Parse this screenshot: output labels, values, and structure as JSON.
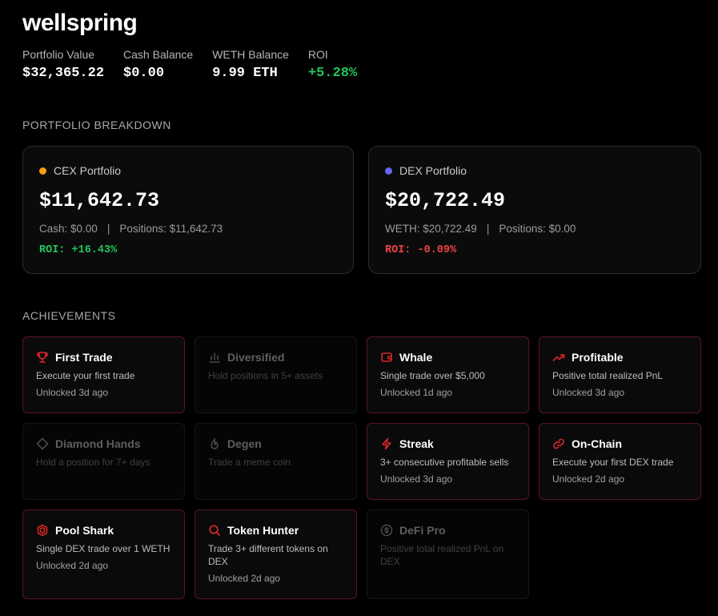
{
  "app_title": "wellspring",
  "stats": [
    {
      "label": "Portfolio Value",
      "value": "$32,365.22",
      "tone": "neutral"
    },
    {
      "label": "Cash Balance",
      "value": "$0.00",
      "tone": "neutral"
    },
    {
      "label": "WETH Balance",
      "value": "9.99 ETH",
      "tone": "neutral"
    },
    {
      "label": "ROI",
      "value": "+5.28%",
      "tone": "positive"
    }
  ],
  "breakdown": {
    "title": "PORTFOLIO BREAKDOWN",
    "cex": {
      "name": "CEX Portfolio",
      "dot_color": "#f59e0b",
      "total": "$11,642.73",
      "detail_left": "Cash: $0.00",
      "separator": "|",
      "detail_right": "Positions: $11,642.73",
      "roi": "ROI: +16.43%"
    },
    "dex": {
      "name": "DEX Portfolio",
      "dot_color": "#6366f1",
      "total": "$20,722.49",
      "detail_left": "WETH: $20,722.49",
      "separator": "|",
      "detail_right": "Positions: $0.00",
      "roi": "ROI: -0.09%"
    }
  },
  "achievements": {
    "title": "ACHIEVEMENTS",
    "items": [
      {
        "name": "First Trade",
        "desc": "Execute your first trade",
        "time": "Unlocked 3d ago",
        "icon": "trophy-icon",
        "unlocked": true
      },
      {
        "name": "Diversified",
        "desc": "Hold positions in 5+ assets",
        "time": "",
        "icon": "bar-chart-icon",
        "unlocked": false
      },
      {
        "name": "Whale",
        "desc": "Single trade over $5,000",
        "time": "Unlocked 1d ago",
        "icon": "wallet-icon",
        "unlocked": true
      },
      {
        "name": "Profitable",
        "desc": "Positive total realized PnL",
        "time": "Unlocked 3d ago",
        "icon": "trending-up-icon",
        "unlocked": true
      },
      {
        "name": "Diamond Hands",
        "desc": "Hold a position for 7+ days",
        "time": "",
        "icon": "diamond-icon",
        "unlocked": false
      },
      {
        "name": "Degen",
        "desc": "Trade a meme coin",
        "time": "",
        "icon": "flame-icon",
        "unlocked": false
      },
      {
        "name": "Streak",
        "desc": "3+ consecutive profitable sells",
        "time": "Unlocked 3d ago",
        "icon": "lightning-icon",
        "unlocked": true
      },
      {
        "name": "On-Chain",
        "desc": "Execute your first DEX trade",
        "time": "Unlocked 2d ago",
        "icon": "link-icon",
        "unlocked": true
      },
      {
        "name": "Pool Shark",
        "desc": "Single DEX trade over 1 WETH",
        "time": "Unlocked 2d ago",
        "icon": "hexagon-icon",
        "unlocked": true
      },
      {
        "name": "Token Hunter",
        "desc": "Trade 3+ different tokens on DEX",
        "time": "Unlocked 2d ago",
        "icon": "search-icon",
        "unlocked": true
      },
      {
        "name": "DeFi Pro",
        "desc": "Positive total realized PnL on DEX",
        "time": "",
        "icon": "dollar-circle-icon",
        "unlocked": false
      }
    ]
  },
  "colors": {
    "accent_red": "#dc2626",
    "positive": "#22c55e",
    "negative": "#ef4444",
    "locked_icon": "#4a4a4a"
  }
}
